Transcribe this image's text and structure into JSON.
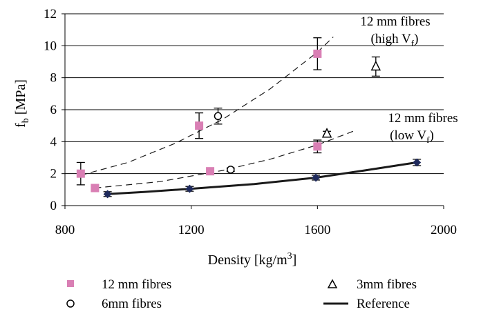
{
  "chart_data": {
    "type": "scatter",
    "xlabel": {
      "text": "Density [kg/m",
      "sup": "3",
      "tail": "]"
    },
    "ylabel": {
      "text": "f",
      "sub": "b",
      "tail": " [MPa]"
    },
    "xlim": [
      800,
      2000
    ],
    "ylim": [
      0,
      12
    ],
    "x_ticks": [
      "800",
      "1200",
      "1600",
      "2000"
    ],
    "y_ticks": [
      "0",
      "2",
      "4",
      "6",
      "8",
      "10",
      "12"
    ],
    "grid": "horizontal",
    "legend_placement": "bottom",
    "annotations": [
      {
        "line1": "12 mm fibres",
        "line2_text": "(high V",
        "line2_sub": "f",
        "line2_tail": ")"
      },
      {
        "line1": "12 mm fibres",
        "line2_text": "(low V",
        "line2_sub": "f",
        "line2_tail": ")"
      }
    ],
    "series": [
      {
        "name": "12 mm fibres",
        "marker": "square",
        "color": "#d97fb4",
        "points": [
          {
            "x": 850,
            "y": 2.0,
            "err": 0.7
          },
          {
            "x": 895,
            "y": 1.1,
            "err": 0
          },
          {
            "x": 1225,
            "y": 5.0,
            "err": 0.8
          },
          {
            "x": 1260,
            "y": 2.15,
            "err": 0
          },
          {
            "x": 1600,
            "y": 9.5,
            "err": 1.0
          },
          {
            "x": 1600,
            "y": 3.7,
            "err": 0.4
          }
        ]
      },
      {
        "name": "6mm fibres",
        "marker": "circle",
        "color": "#000000",
        "points": [
          {
            "x": 1285,
            "y": 5.6,
            "err": 0.5
          },
          {
            "x": 1325,
            "y": 2.25,
            "err": 0.1
          }
        ]
      },
      {
        "name": "3mm fibres",
        "marker": "triangle",
        "color": "#000000",
        "points": [
          {
            "x": 1785,
            "y": 8.7,
            "err": 0.6
          },
          {
            "x": 1630,
            "y": 4.5,
            "err": 0.15
          }
        ]
      },
      {
        "name": "Reference",
        "marker": "diamond",
        "color": "#1f2a5c",
        "points": [
          {
            "x": 935,
            "y": 0.72,
            "err": 0.15
          },
          {
            "x": 1195,
            "y": 1.05,
            "err": 0.15
          },
          {
            "x": 1595,
            "y": 1.75,
            "err": 0.15
          },
          {
            "x": 1915,
            "y": 2.7,
            "err": 0.2
          }
        ]
      }
    ],
    "trend_lines": [
      {
        "style": "dashed",
        "points": [
          [
            850,
            1.9
          ],
          [
            1000,
            2.7
          ],
          [
            1150,
            3.9
          ],
          [
            1300,
            5.4
          ],
          [
            1450,
            7.3
          ],
          [
            1600,
            9.6
          ],
          [
            1650,
            10.55
          ]
        ]
      },
      {
        "style": "dashed",
        "points": [
          [
            895,
            1.1
          ],
          [
            1100,
            1.5
          ],
          [
            1300,
            2.2
          ],
          [
            1450,
            2.9
          ],
          [
            1600,
            3.8
          ],
          [
            1720,
            4.7
          ]
        ]
      },
      {
        "style": "solid",
        "points": [
          [
            935,
            0.72
          ],
          [
            1050,
            0.85
          ],
          [
            1195,
            1.05
          ],
          [
            1400,
            1.35
          ],
          [
            1595,
            1.75
          ],
          [
            1750,
            2.2
          ],
          [
            1915,
            2.7
          ]
        ]
      }
    ]
  }
}
